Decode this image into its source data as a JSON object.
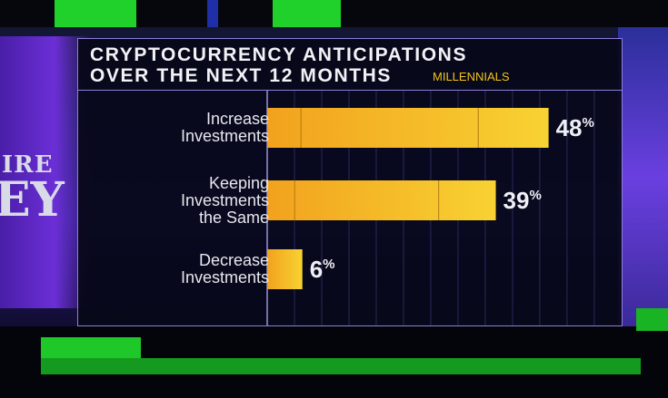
{
  "chart_data": {
    "type": "bar",
    "orientation": "horizontal",
    "title_line1": "CRYPTOCURRENCY ANTICIPATIONS",
    "title_line2": "OVER THE NEXT 12 MONTHS",
    "subtitle": "MILLENNIALS",
    "categories": [
      [
        "Increase",
        "Investments"
      ],
      [
        "Keeping",
        "Investments",
        "the Same"
      ],
      [
        "Decrease",
        "Investments"
      ]
    ],
    "values": [
      48,
      39,
      6
    ],
    "value_suffix": "%",
    "xlim": [
      0,
      60
    ],
    "colors": {
      "bar_start": "#f2a21e",
      "bar_end": "#f8d232",
      "label": "#e6e7ee",
      "title": "#f2f2f6",
      "subtitle": "#f3c21b"
    }
  }
}
